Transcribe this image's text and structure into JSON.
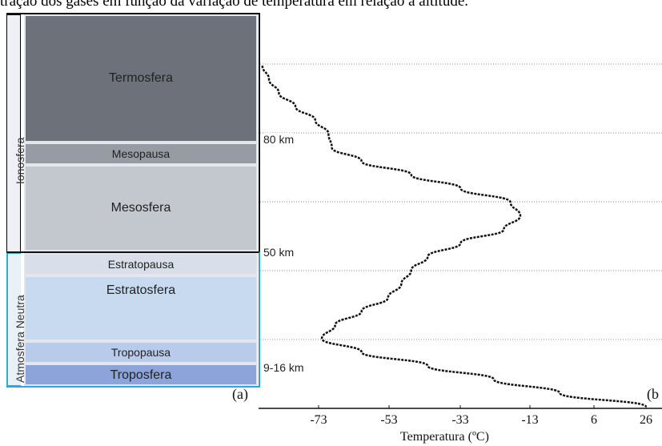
{
  "caption": "tração dos gases em função da variação de temperatura em relação à altitude.",
  "regions": {
    "ionosfera": "Ionosfera",
    "neutra": "Atmosfera Neutra"
  },
  "layers": {
    "termosfera": "Termosfera",
    "mesopausa": "Mesopausa",
    "mesosfera": "Mesosfera",
    "estratopausa": "Estratopausa",
    "estratosfera": "Estratosfera",
    "tropopausa": "Tropopausa",
    "troposfera": "Troposfera"
  },
  "panel_labels": {
    "a": "(a)",
    "b": "(b"
  },
  "altitude_labels": {
    "km80": "80 km",
    "km50": "50 km",
    "km9_16": "9-16 km"
  },
  "colors": {
    "termosfera": "#6c717a",
    "mesopausa": "#979ba3",
    "mesosfera": "#c3c7ce",
    "estratopausa": "#d8dfea",
    "estratosfera": "#c8daf0",
    "tropopausa": "#b9cbeb",
    "troposfera": "#8ca4da",
    "neutra_border": "#2aa8de"
  },
  "chart_data": {
    "type": "line",
    "xlabel": "Temperatura (ºC)",
    "ylabel": "",
    "x_ticks": [
      "-73",
      "-53",
      "-33",
      "-13",
      "6",
      "26"
    ],
    "series": [
      {
        "temperature_c": [
          -90,
          -88,
          -85,
          -80,
          -74,
          -70,
          -69,
          -60,
          -45,
          -30,
          -15,
          -12,
          -17,
          -30,
          -40,
          -45,
          -48,
          -52,
          -60,
          -68,
          -72,
          -60,
          -40,
          -20,
          0,
          26
        ],
        "profile_index": [
          0,
          1,
          2,
          3,
          4,
          5,
          6,
          7,
          8,
          9,
          10,
          11,
          12,
          13,
          14,
          15,
          16,
          17,
          18,
          19,
          20,
          21,
          22,
          23,
          24,
          25
        ]
      }
    ]
  }
}
